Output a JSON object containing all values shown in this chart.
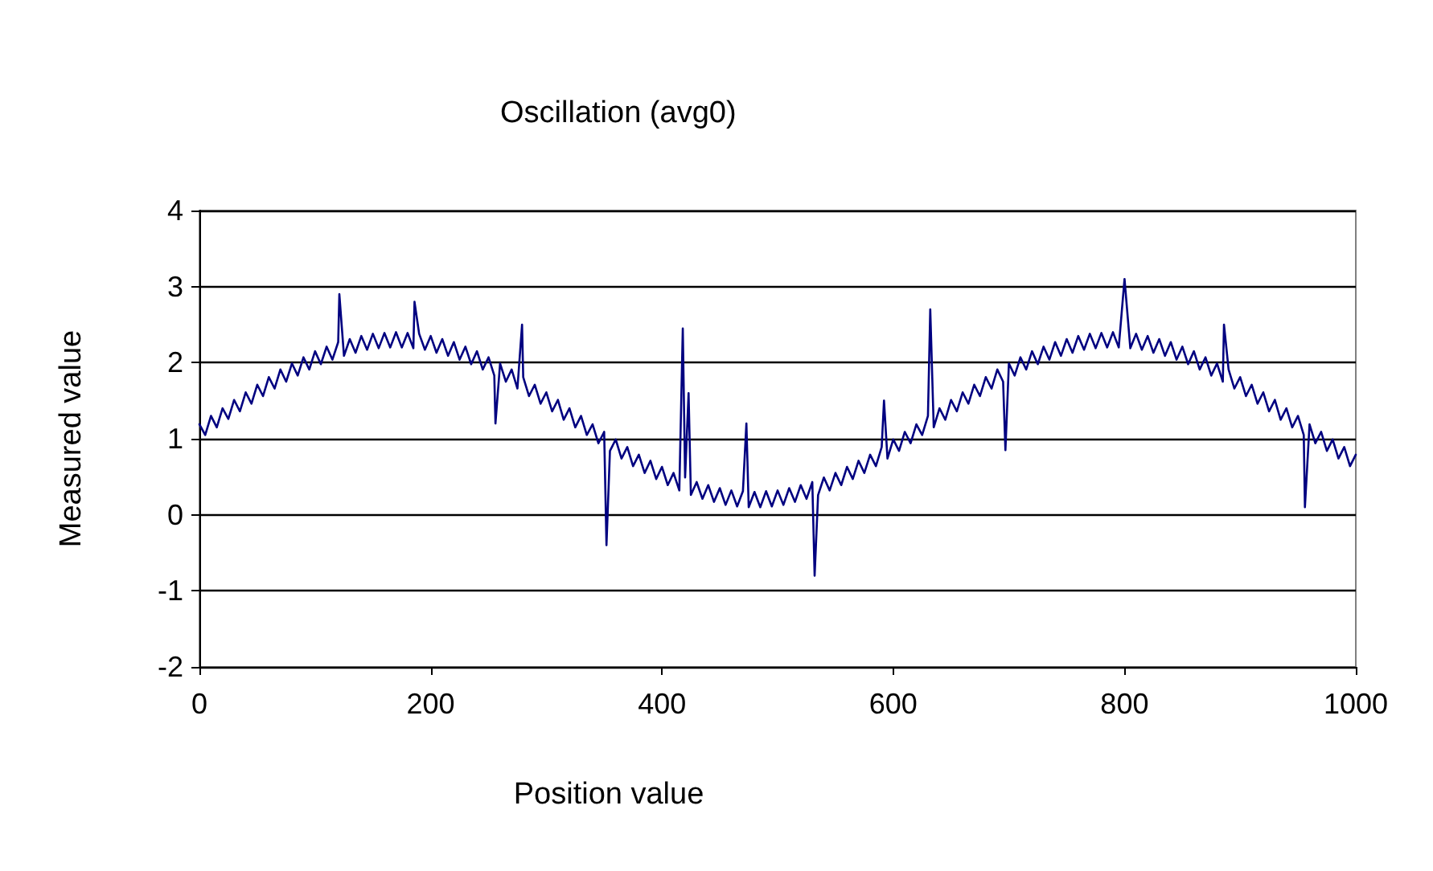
{
  "chart_data": {
    "type": "line",
    "title": "Oscillation (avg0)",
    "xlabel": "Position value",
    "ylabel": "Measured value",
    "xlim": [
      0,
      1000
    ],
    "xticks": [
      0,
      200,
      400,
      600,
      800,
      1000
    ],
    "ylim": [
      -2,
      4
    ],
    "yticks": [
      -2,
      -1,
      0,
      1,
      2,
      3,
      4
    ],
    "grid": "y",
    "marker": "none",
    "line_style": "solid",
    "series": [
      {
        "color": "#000080",
        "x": [
          0,
          5,
          10,
          15,
          20,
          25,
          30,
          35,
          40,
          45,
          50,
          55,
          60,
          65,
          70,
          75,
          80,
          85,
          90,
          95,
          100,
          105,
          110,
          115,
          120,
          121,
          125,
          130,
          135,
          140,
          145,
          150,
          155,
          160,
          165,
          170,
          175,
          180,
          185,
          186,
          190,
          195,
          200,
          205,
          210,
          215,
          220,
          225,
          230,
          235,
          240,
          245,
          250,
          255,
          256,
          260,
          265,
          270,
          275,
          279,
          280,
          285,
          290,
          295,
          300,
          305,
          310,
          315,
          320,
          325,
          330,
          335,
          340,
          345,
          350,
          352,
          355,
          360,
          365,
          370,
          375,
          380,
          385,
          390,
          395,
          400,
          405,
          410,
          415,
          418,
          420,
          423,
          425,
          430,
          435,
          440,
          445,
          450,
          455,
          460,
          465,
          470,
          473,
          475,
          480,
          485,
          490,
          495,
          500,
          505,
          510,
          515,
          520,
          525,
          530,
          532,
          535,
          540,
          545,
          550,
          555,
          560,
          565,
          570,
          575,
          580,
          585,
          590,
          592,
          595,
          600,
          605,
          610,
          615,
          620,
          625,
          630,
          632,
          635,
          640,
          645,
          650,
          655,
          660,
          665,
          670,
          675,
          680,
          685,
          690,
          695,
          697,
          700,
          705,
          710,
          715,
          720,
          725,
          730,
          735,
          740,
          745,
          750,
          755,
          760,
          765,
          770,
          775,
          780,
          785,
          790,
          795,
          800,
          805,
          810,
          815,
          820,
          825,
          830,
          835,
          840,
          845,
          850,
          855,
          860,
          865,
          870,
          875,
          880,
          885,
          886,
          890,
          895,
          900,
          905,
          910,
          915,
          920,
          925,
          930,
          935,
          940,
          945,
          950,
          955,
          956,
          960,
          965,
          970,
          975,
          980,
          985,
          990,
          995,
          1000
        ],
        "values": [
          1.19,
          1.05,
          1.3,
          1.15,
          1.4,
          1.26,
          1.51,
          1.36,
          1.61,
          1.46,
          1.71,
          1.56,
          1.81,
          1.66,
          1.91,
          1.75,
          1.99,
          1.83,
          2.07,
          1.91,
          2.15,
          1.98,
          2.21,
          2.04,
          2.27,
          2.9,
          2.09,
          2.31,
          2.13,
          2.35,
          2.17,
          2.38,
          2.19,
          2.39,
          2.2,
          2.4,
          2.2,
          2.39,
          2.19,
          2.8,
          2.38,
          2.17,
          2.35,
          2.13,
          2.31,
          2.09,
          2.27,
          2.04,
          2.21,
          1.98,
          2.15,
          1.91,
          2.07,
          1.83,
          1.2,
          1.99,
          1.75,
          1.91,
          1.66,
          2.5,
          1.81,
          1.56,
          1.71,
          1.46,
          1.61,
          1.36,
          1.51,
          1.25,
          1.4,
          1.15,
          1.3,
          1.05,
          1.19,
          0.94,
          1.09,
          -0.4,
          0.84,
          0.99,
          0.74,
          0.89,
          0.64,
          0.79,
          0.55,
          0.71,
          0.47,
          0.63,
          0.39,
          0.55,
          0.32,
          2.45,
          0.49,
          1.6,
          0.26,
          0.43,
          0.21,
          0.39,
          0.17,
          0.35,
          0.13,
          0.32,
          0.11,
          0.31,
          1.2,
          0.1,
          0.3,
          0.1,
          0.31,
          0.11,
          0.32,
          0.13,
          0.35,
          0.17,
          0.39,
          0.21,
          0.43,
          -0.8,
          0.26,
          0.49,
          0.32,
          0.55,
          0.39,
          0.63,
          0.47,
          0.71,
          0.55,
          0.79,
          0.64,
          0.89,
          1.5,
          0.74,
          0.99,
          0.84,
          1.09,
          0.94,
          1.19,
          1.05,
          1.3,
          2.7,
          1.15,
          1.4,
          1.25,
          1.51,
          1.36,
          1.61,
          1.46,
          1.71,
          1.56,
          1.81,
          1.66,
          1.91,
          1.75,
          0.85,
          1.99,
          1.83,
          2.07,
          1.91,
          2.15,
          1.98,
          2.21,
          2.04,
          2.27,
          2.09,
          2.31,
          2.13,
          2.35,
          2.17,
          2.38,
          2.19,
          2.39,
          2.2,
          2.4,
          2.2,
          3.1,
          2.19,
          2.38,
          2.17,
          2.35,
          2.13,
          2.31,
          2.09,
          2.27,
          2.04,
          2.21,
          1.98,
          2.15,
          1.91,
          2.07,
          1.83,
          1.99,
          1.75,
          2.5,
          1.91,
          1.66,
          1.81,
          1.56,
          1.71,
          1.46,
          1.61,
          1.36,
          1.51,
          1.25,
          1.4,
          1.15,
          1.3,
          1.05,
          0.1,
          1.19,
          0.94,
          1.09,
          0.84,
          0.99,
          0.74,
          0.89,
          0.64,
          0.79
        ]
      }
    ]
  }
}
